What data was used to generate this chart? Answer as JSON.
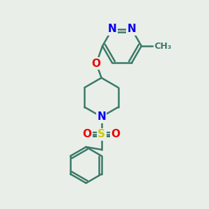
{
  "bg_color": "#eaeee9",
  "bond_color": "#3a7a68",
  "bond_width": 1.8,
  "atom_colors": {
    "N": "#0000ee",
    "O": "#ee0000",
    "S": "#cccc00",
    "C": "#3a7a68"
  },
  "font_size_atom": 11,
  "figsize": [
    3.0,
    3.0
  ],
  "dpi": 100
}
